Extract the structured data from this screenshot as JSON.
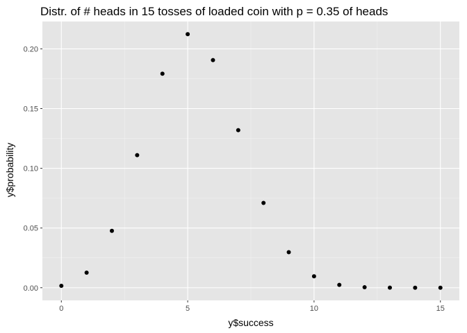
{
  "chart_data": {
    "type": "scatter",
    "title": "Distr. of # heads in 15 tosses of loaded coin with p = 0.35 of heads",
    "xlabel": "y$success",
    "ylabel": "y$probability",
    "x": [
      0,
      1,
      2,
      3,
      4,
      5,
      6,
      7,
      8,
      9,
      10,
      11,
      12,
      13,
      14,
      15
    ],
    "y": [
      0.0016,
      0.0126,
      0.0476,
      0.111,
      0.1792,
      0.2123,
      0.1906,
      0.1319,
      0.071,
      0.0298,
      0.0096,
      0.0024,
      0.0004,
      0.0001,
      0.0,
      0.0
    ],
    "xlim": [
      -0.75,
      15.75
    ],
    "ylim": [
      -0.0106,
      0.2229
    ],
    "x_ticks": [
      0,
      5,
      10,
      15
    ],
    "x_tick_labels": [
      "0",
      "5",
      "10",
      "15"
    ],
    "y_ticks": [
      0.0,
      0.05,
      0.1,
      0.15,
      0.2
    ],
    "y_tick_labels": [
      "0.00",
      "0.05",
      "0.10",
      "0.15",
      "0.20"
    ],
    "grid": true,
    "legend": "none",
    "colors": {
      "panel_background": "#e5e5e5",
      "grid_major": "#ffffff",
      "grid_minor": "#f2f2f2",
      "point": "#000000",
      "tick_label": "#4d4d4d"
    }
  }
}
